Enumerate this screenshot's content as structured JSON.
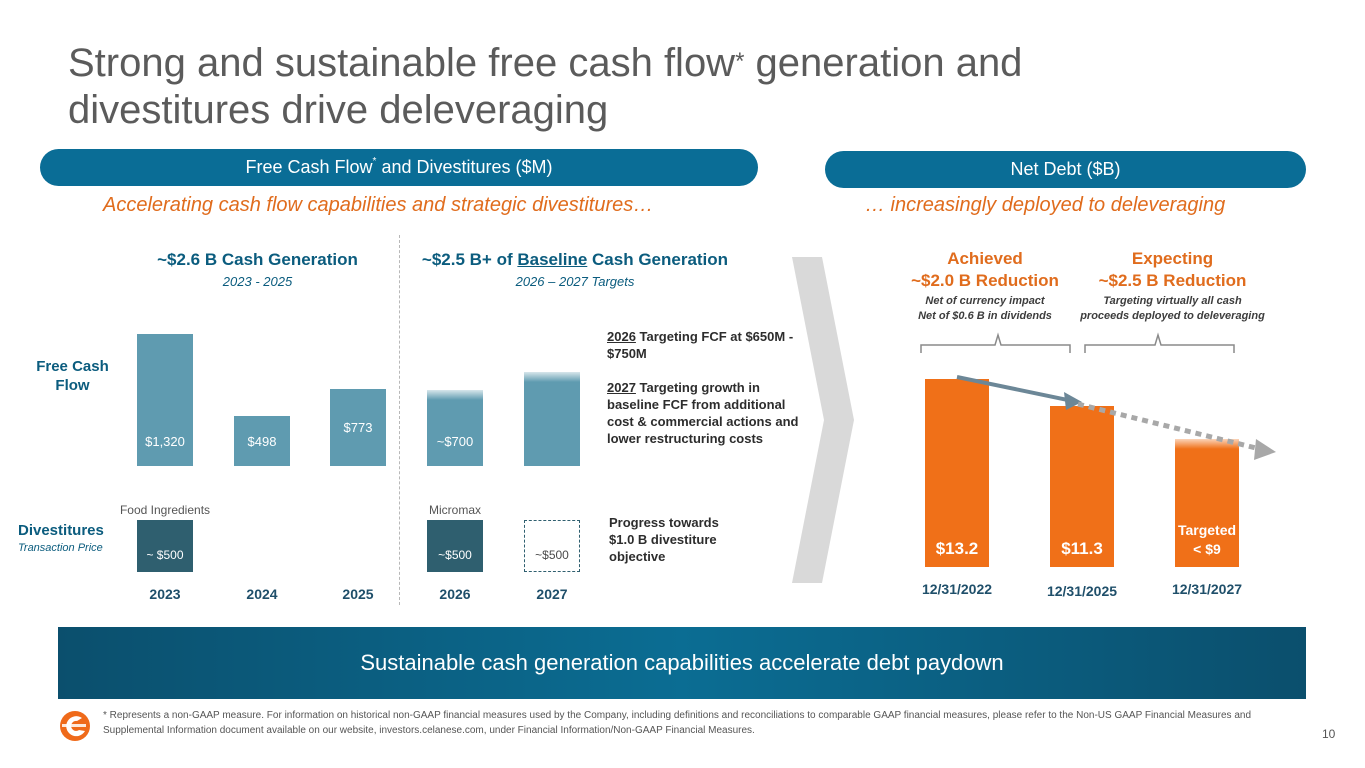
{
  "slide": {
    "title_part1": "Strong and sustainable free cash flow",
    "title_asterisk": "*",
    "title_part2": " generation and",
    "title_line2": "divestitures drive deleveraging",
    "page_number": "10"
  },
  "left_panel": {
    "pill_label": "Free Cash Flow",
    "pill_asterisk": "*",
    "pill_suffix": " and Divestitures ($M)",
    "subtitle": "Accelerating cash flow capabilities and strategic divestitures…",
    "header_left": "~$2.6 B Cash Generation",
    "header_left_sub": "2023 - 2025",
    "header_right_prefix": "~$2.5 B+ of ",
    "header_right_underlined": "Baseline",
    "header_right_suffix": " Cash Generation",
    "header_right_sub": "2026 – 2027 Targets",
    "row_label_fcf": "Free Cash\nFlow",
    "row_label_div": "Divestitures",
    "row_label_div_sub": "Transaction Price",
    "note_2026_year": "2026",
    "note_2026_text": " Targeting FCF at $650M - $750M",
    "note_2027_year": "2027",
    "note_2027_text": " Targeting growth in baseline FCF from additional cost & commercial actions and lower restructuring costs",
    "note_progress": "Progress towards $1.0 B divestiture objective"
  },
  "right_panel": {
    "pill_label": "Net Debt ($B)",
    "subtitle": "… increasingly deployed to deleveraging",
    "achieved_title": "Achieved",
    "achieved_value": "~$2.0 B Reduction",
    "achieved_note1": "Net of currency impact",
    "achieved_note2": "Net of $0.6 B in dividends",
    "expecting_title": "Expecting",
    "expecting_value": "~$2.5 B Reduction",
    "expecting_note1": "Targeting virtually all cash",
    "expecting_note2": "proceeds deployed to deleveraging"
  },
  "banner_text": "Sustainable cash generation capabilities accelerate debt paydown",
  "footnote": "* Represents a non-GAAP measure. For information on historical non-GAAP financial measures used by the Company, including definitions and reconciliations to comparable GAAP financial measures, please refer to the Non-US GAAP Financial Measures and Supplemental Information document available on our website, investors.celanese.com, under Financial Information/Non-GAAP Financial Measures.",
  "colors": {
    "accent_blue": "#0a6d96",
    "fcf_bar": "#5f9bb0",
    "divestiture_bar": "#2f5f6f",
    "net_debt_bar": "#f07018",
    "accent_orange": "#e06c1d"
  },
  "chart_data": [
    {
      "type": "bar",
      "title": "Free Cash Flow ($M)",
      "categories": [
        "2023",
        "2024",
        "2025",
        "2026",
        "2027"
      ],
      "values": [
        1320,
        498,
        773,
        700,
        null
      ],
      "labels": [
        "$1,320",
        "$498",
        "$773",
        "~$700",
        ""
      ],
      "estimated": [
        false,
        false,
        false,
        true,
        true
      ],
      "ylim": [
        0,
        1400
      ]
    },
    {
      "type": "bar",
      "title": "Divestitures – Transaction Price ($M)",
      "categories": [
        "2023",
        "2024",
        "2025",
        "2026",
        "2027"
      ],
      "values": [
        500,
        null,
        null,
        500,
        500
      ],
      "labels": [
        "~ $500",
        "",
        "",
        "~$500",
        "~$500"
      ],
      "annotations": [
        "Food Ingredients",
        "",
        "",
        "Micromax",
        ""
      ],
      "projected": [
        false,
        false,
        false,
        false,
        true
      ]
    },
    {
      "type": "bar",
      "title": "Net Debt ($B)",
      "categories": [
        "12/31/2022",
        "12/31/2025",
        "12/31/2027"
      ],
      "values": [
        13.2,
        11.3,
        9
      ],
      "labels": [
        "$13.2",
        "$11.3",
        "Targeted\n< $9"
      ],
      "ylim": [
        0,
        14
      ]
    }
  ]
}
